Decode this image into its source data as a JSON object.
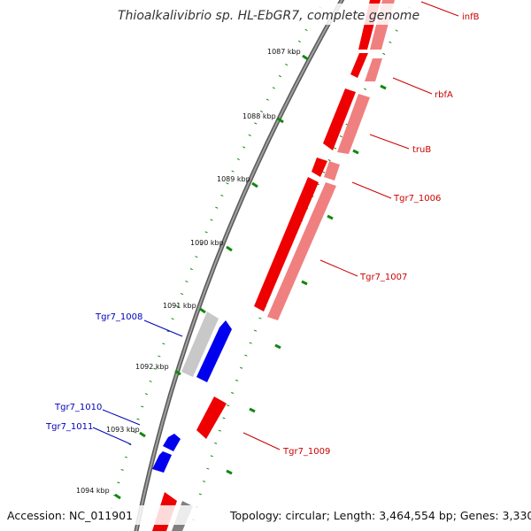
{
  "title": "Thioalkalivibrio sp. HL-EbGR7, complete genome",
  "accession": "Accession: NC_011901",
  "summary": "Topology: circular; Length: 3,464,554 bp; Genes: 3,330",
  "ticks": [
    "1087 kbp",
    "1088 kbp",
    "1089 kbp",
    "1090 kbp",
    "1091 kbp",
    "1092 kbp",
    "1093 kbp",
    "1094 kbp"
  ],
  "genes": [
    {
      "name": "infB",
      "strand": "reverse",
      "color": "#cc0000"
    },
    {
      "name": "rbfA",
      "strand": "reverse",
      "color": "#cc0000"
    },
    {
      "name": "truB",
      "strand": "reverse",
      "color": "#cc0000"
    },
    {
      "name": "Tgr7_1006",
      "strand": "reverse",
      "color": "#cc0000"
    },
    {
      "name": "Tgr7_1007",
      "strand": "reverse",
      "color": "#cc0000"
    },
    {
      "name": "Tgr7_1008",
      "strand": "forward",
      "color": "#0000bb"
    },
    {
      "name": "Tgr7_1009",
      "strand": "reverse",
      "color": "#cc0000"
    },
    {
      "name": "Tgr7_1010",
      "strand": "forward",
      "color": "#0000bb"
    },
    {
      "name": "Tgr7_1011",
      "strand": "forward",
      "color": "#0000bb"
    }
  ],
  "colors": {
    "reverse_cds": "#ee0000",
    "reverse_shadow": "#f08080",
    "forward_cds": "#0000ee",
    "gray_feature": "#c8c8c8",
    "backbone": "#808080",
    "tick": "#118811"
  }
}
